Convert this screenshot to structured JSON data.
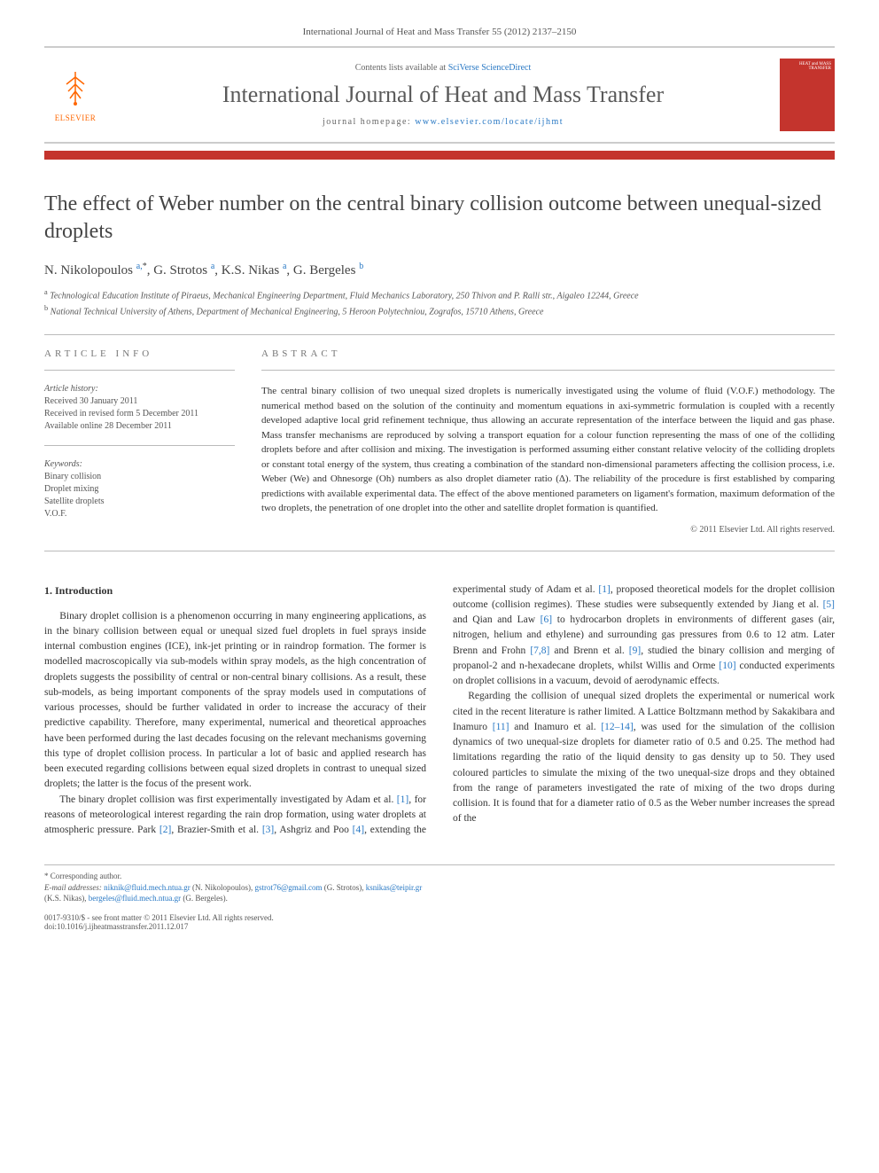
{
  "journal_ref": "International Journal of Heat and Mass Transfer 55 (2012) 2137–2150",
  "publisher": {
    "name": "ELSEVIER"
  },
  "header": {
    "contents_prefix": "Contents lists available at ",
    "contents_link": "SciVerse ScienceDirect",
    "journal_name": "International Journal of Heat and Mass Transfer",
    "homepage_prefix": "journal homepage: ",
    "homepage_url": "www.elsevier.com/locate/ijhmt",
    "cover_text_top": "HEAT and MASS TRANSFER"
  },
  "article": {
    "title": "The effect of Weber number on the central binary collision outcome between unequal-sized droplets",
    "authors_html_parts": [
      {
        "name": "N. Nikolopoulos",
        "aff": "a,",
        "mark": "*"
      },
      {
        "name": "G. Strotos",
        "aff": "a"
      },
      {
        "name": "K.S. Nikas",
        "aff": "a"
      },
      {
        "name": "G. Bergeles",
        "aff": "b"
      }
    ],
    "affiliations": [
      {
        "sup": "a",
        "text": "Technological Education Institute of Piraeus, Mechanical Engineering Department, Fluid Mechanics Laboratory, 250 Thivon and P. Ralli str., Aigaleo 12244, Greece"
      },
      {
        "sup": "b",
        "text": "National Technical University of Athens, Department of Mechanical Engineering, 5 Heroon Polytechniou, Zografos, 15710 Athens, Greece"
      }
    ]
  },
  "info": {
    "heading": "ARTICLE INFO",
    "history_label": "Article history:",
    "history": [
      "Received 30 January 2011",
      "Received in revised form 5 December 2011",
      "Available online 28 December 2011"
    ],
    "keywords_label": "Keywords:",
    "keywords": [
      "Binary collision",
      "Droplet mixing",
      "Satellite droplets",
      "V.O.F."
    ]
  },
  "abstract": {
    "heading": "ABSTRACT",
    "text": "The central binary collision of two unequal sized droplets is numerically investigated using the volume of fluid (V.O.F.) methodology. The numerical method based on the solution of the continuity and momentum equations in axi-symmetric formulation is coupled with a recently developed adaptive local grid refinement technique, thus allowing an accurate representation of the interface between the liquid and gas phase. Mass transfer mechanisms are reproduced by solving a transport equation for a colour function representing the mass of one of the colliding droplets before and after collision and mixing. The investigation is performed assuming either constant relative velocity of the colliding droplets or constant total energy of the system, thus creating a combination of the standard non-dimensional parameters affecting the collision process, i.e. Weber (We) and Ohnesorge (Oh) numbers as also droplet diameter ratio (Δ). The reliability of the procedure is first established by comparing predictions with available experimental data. The effect of the above mentioned parameters on ligament's formation, maximum deformation of the two droplets, the penetration of one droplet into the other and satellite droplet formation is quantified.",
    "copyright": "© 2011 Elsevier Ltd. All rights reserved."
  },
  "section1": {
    "heading": "1. Introduction",
    "p1": "Binary droplet collision is a phenomenon occurring in many engineering applications, as in the binary collision between equal or unequal sized fuel droplets in fuel sprays inside internal combustion engines (ICE), ink-jet printing or in raindrop formation. The former is modelled macroscopically via sub-models within spray models, as the high concentration of droplets suggests the possibility of central or non-central binary collisions. As a result, these sub-models, as being important components of the spray models used in computations of various processes, should be further validated in order to increase the accuracy of their predictive capability. Therefore, many experimental, numerical and theoretical approaches have been performed during the last decades focusing on the relevant mechanisms governing this type of droplet collision process. In particular a lot of basic and applied research has been executed regarding collisions between equal sized droplets in contrast to unequal sized droplets; the latter is the focus of the present work.",
    "p2": "The binary droplet collision was first experimentally investigated by Adam et al. [1], for reasons of meteorological interest regarding the rain drop formation, using water droplets at atmospheric pressure. Park [2], Brazier-Smith et al. [3], Ashgriz and Poo [4], extending the experimental study of Adam et al. [1], proposed theoretical models for the droplet collision outcome (collision regimes). These studies were subsequently extended by Jiang et al. [5] and Qian and Law [6] to hydrocarbon droplets in environments of different gases (air, nitrogen, helium and ethylene) and surrounding gas pressures from 0.6 to 12 atm. Later Brenn and Frohn [7,8] and Brenn et al. [9], studied the binary collision and merging of propanol-2 and n-hexadecane droplets, whilst Willis and Orme [10] conducted experiments on droplet collisions in a vacuum, devoid of aerodynamic effects.",
    "p3": "Regarding the collision of unequal sized droplets the experimental or numerical work cited in the recent literature is rather limited. A Lattice Boltzmann method by Sakakibara and Inamuro [11] and Inamuro et al. [12–14], was used for the simulation of the collision dynamics of two unequal-size droplets for diameter ratio of 0.5 and 0.25. The method had limitations regarding the ratio of the liquid density to gas density up to 50. They used coloured particles to simulate the mixing of the two unequal-size drops and they obtained from the range of parameters investigated the rate of mixing of the two drops during collision. It is found that for a diameter ratio of 0.5 as the Weber number increases the spread of the"
  },
  "footnotes": {
    "corr": "* Corresponding author.",
    "email_label": "E-mail addresses: ",
    "emails": [
      {
        "addr": "niknik@fluid.mech.ntua.gr",
        "who": "(N. Nikolopoulos)"
      },
      {
        "addr": "gstrot76@gmail.com",
        "who": "(G. Strotos)"
      },
      {
        "addr": "ksnikas@teipir.gr",
        "who": "(K.S. Nikas)"
      },
      {
        "addr": "bergeles@fluid.mech.ntua.gr",
        "who": "(G. Bergeles)."
      }
    ]
  },
  "bottom": {
    "issn": "0017-9310/$ - see front matter © 2011 Elsevier Ltd. All rights reserved.",
    "doi": "doi:10.1016/j.ijheatmasstransfer.2011.12.017"
  },
  "colors": {
    "accent_red": "#c4342d",
    "link_blue": "#2878c4",
    "publisher_orange": "#ff6600",
    "rule_gray": "#bbbbbb",
    "text": "#333333"
  }
}
